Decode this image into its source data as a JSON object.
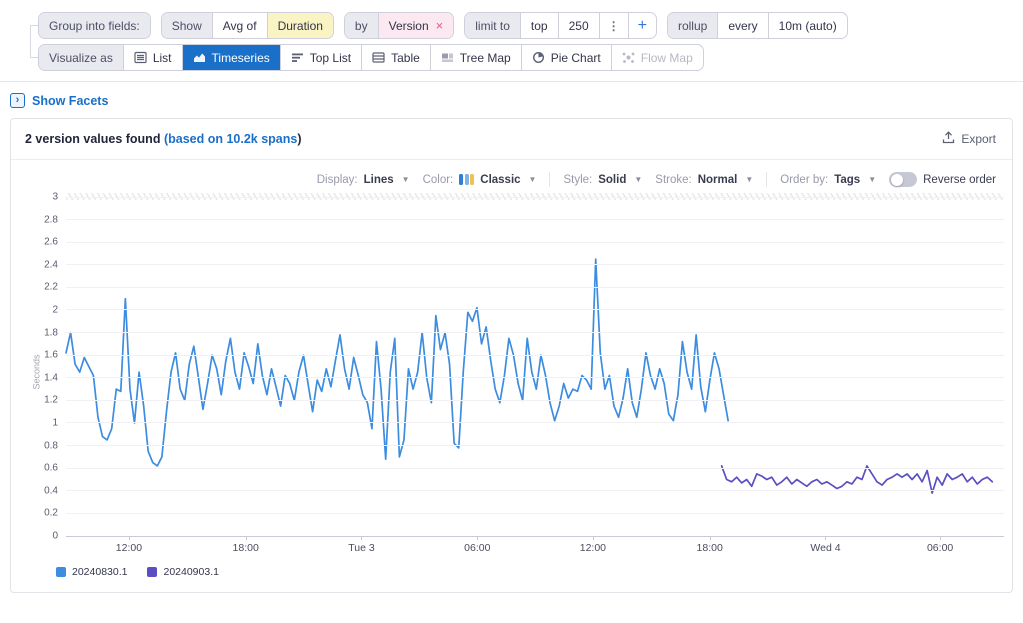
{
  "query_bar": {
    "group_label": "Group into fields:",
    "show_label": "Show",
    "aggregation": "Avg of",
    "measure": "Duration",
    "by_label": "by",
    "group_by": "Version",
    "remove_icon": "×",
    "limit_label": "limit to",
    "limit_direction": "top",
    "limit_value": "250",
    "kebab_icon": "⋮",
    "add_icon": "+",
    "rollup_label": "rollup",
    "every_label": "every",
    "rollup_value": "10m (auto)"
  },
  "visualize": {
    "label": "Visualize as",
    "options": [
      {
        "label": "List",
        "selected": false,
        "disabled": false
      },
      {
        "label": "Timeseries",
        "selected": true,
        "disabled": false
      },
      {
        "label": "Top List",
        "selected": false,
        "disabled": false
      },
      {
        "label": "Table",
        "selected": false,
        "disabled": false
      },
      {
        "label": "Tree Map",
        "selected": false,
        "disabled": false
      },
      {
        "label": "Pie Chart",
        "selected": false,
        "disabled": false
      },
      {
        "label": "Flow Map",
        "selected": false,
        "disabled": true
      }
    ]
  },
  "facets": {
    "show_facets_label": "Show Facets"
  },
  "panel": {
    "title_main": "2 version values found ",
    "title_link": "(based on 10.2k spans",
    "title_close": ")",
    "export_label": "Export"
  },
  "controls": {
    "display_label": "Display:",
    "display_value": "Lines",
    "color_label": "Color:",
    "color_value": "Classic",
    "style_label": "Style:",
    "style_value": "Solid",
    "stroke_label": "Stroke:",
    "stroke_value": "Normal",
    "order_label": "Order by:",
    "order_value": "Tags",
    "reverse_label": "Reverse order",
    "reverse_on": false
  },
  "colors": {
    "accent_blue": "#1a6fc9",
    "series_blue": "#3c8ce0",
    "series_purple": "#5a4ec2",
    "swatch_bar1": "#2f7fd6",
    "swatch_bar2": "#7db4ea",
    "swatch_bar3": "#f2c24e"
  },
  "chart_data": {
    "type": "line",
    "ylabel": "Seconds",
    "ylim": [
      0,
      3
    ],
    "y_tick_step": 0.2,
    "y_tick_labels": [
      "3",
      "2.8",
      "2.6",
      "2.4",
      "2.2",
      "2",
      "1.8",
      "1.6",
      "1.4",
      "1.2",
      "1",
      "0.8",
      "0.6",
      "0.4",
      "0.2",
      "0"
    ],
    "grid": true,
    "x_range_hours": 48.6,
    "x_ticks": [
      {
        "label": "12:00",
        "t": 3.26
      },
      {
        "label": "18:00",
        "t": 9.31
      },
      {
        "label": "Tue 3",
        "t": 15.31
      },
      {
        "label": "06:00",
        "t": 21.31
      },
      {
        "label": "12:00",
        "t": 27.3
      },
      {
        "label": "18:00",
        "t": 33.35
      },
      {
        "label": "Wed 4",
        "t": 39.35
      },
      {
        "label": "06:00",
        "t": 45.29
      }
    ],
    "legend_position": "bottom-left",
    "series": [
      {
        "name": "20240830.1",
        "color": "#3c8ce0",
        "t_start": 0,
        "t_step": 0.2366,
        "values": [
          1.62,
          1.8,
          1.52,
          1.45,
          1.58,
          1.5,
          1.42,
          1.05,
          0.88,
          0.85,
          0.95,
          1.3,
          1.28,
          2.1,
          1.3,
          1.0,
          1.45,
          1.15,
          0.75,
          0.65,
          0.62,
          0.7,
          1.1,
          1.45,
          1.62,
          1.3,
          1.2,
          1.52,
          1.68,
          1.4,
          1.12,
          1.35,
          1.6,
          1.48,
          1.25,
          1.55,
          1.75,
          1.45,
          1.3,
          1.62,
          1.5,
          1.35,
          1.7,
          1.42,
          1.25,
          1.48,
          1.32,
          1.15,
          1.42,
          1.35,
          1.2,
          1.45,
          1.6,
          1.35,
          1.1,
          1.38,
          1.28,
          1.48,
          1.32,
          1.55,
          1.78,
          1.48,
          1.3,
          1.58,
          1.42,
          1.25,
          1.18,
          0.95,
          1.72,
          1.3,
          0.68,
          1.45,
          1.75,
          0.7,
          0.85,
          1.48,
          1.3,
          1.45,
          1.8,
          1.4,
          1.18,
          1.95,
          1.65,
          1.8,
          1.52,
          0.82,
          0.78,
          1.45,
          1.98,
          1.9,
          2.02,
          1.7,
          1.85,
          1.55,
          1.3,
          1.18,
          1.42,
          1.75,
          1.6,
          1.35,
          1.2,
          1.75,
          1.45,
          1.3,
          1.6,
          1.42,
          1.18,
          1.02,
          1.15,
          1.35,
          1.22,
          1.3,
          1.28,
          1.42,
          1.38,
          1.3,
          2.45,
          1.62,
          1.3,
          1.42,
          1.15,
          1.05,
          1.22,
          1.48,
          1.18,
          1.05,
          1.3,
          1.62,
          1.42,
          1.3,
          1.48,
          1.35,
          1.08,
          1.02,
          1.25,
          1.72,
          1.45,
          1.3,
          1.78,
          1.32,
          1.1,
          1.38,
          1.62,
          1.48,
          1.25,
          1.02
        ]
      },
      {
        "name": "20240903.1",
        "color": "#5a4ec2",
        "t_start": 33.97,
        "t_step": 0.2597,
        "values": [
          0.62,
          0.5,
          0.48,
          0.52,
          0.47,
          0.5,
          0.44,
          0.55,
          0.53,
          0.5,
          0.52,
          0.45,
          0.48,
          0.52,
          0.46,
          0.5,
          0.47,
          0.44,
          0.48,
          0.5,
          0.46,
          0.48,
          0.45,
          0.42,
          0.44,
          0.48,
          0.46,
          0.52,
          0.5,
          0.62,
          0.55,
          0.48,
          0.45,
          0.5,
          0.52,
          0.55,
          0.52,
          0.55,
          0.5,
          0.55,
          0.48,
          0.58,
          0.38,
          0.52,
          0.45,
          0.55,
          0.5,
          0.52,
          0.55,
          0.48,
          0.52,
          0.46,
          0.5,
          0.52,
          0.48
        ]
      }
    ]
  }
}
